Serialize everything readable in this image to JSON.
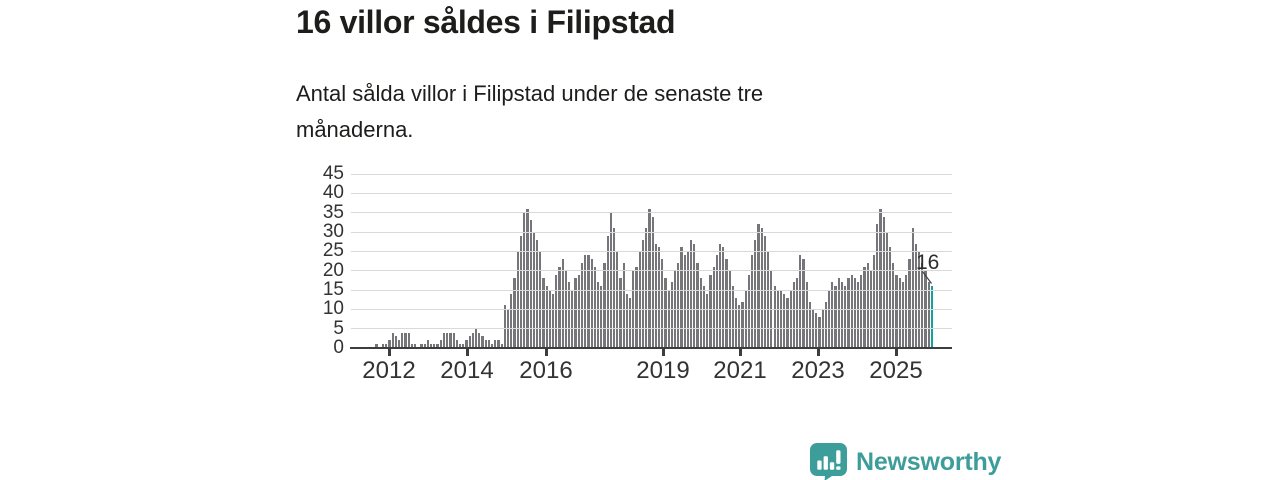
{
  "header": {
    "title": "16 villor såldes i Filipstad",
    "subtitle": "Antal sålda villor i Filipstad under de senaste tre månaderna."
  },
  "chart_data": {
    "type": "bar",
    "title": "16 villor såldes i Filipstad",
    "subtitle": "Antal sålda villor i Filipstad under de senaste tre månaderna.",
    "xlabel": "",
    "ylabel": "",
    "ylim": [
      0,
      45
    ],
    "yticks": [
      0,
      5,
      10,
      15,
      20,
      25,
      30,
      35,
      40,
      45
    ],
    "grid": "horizontal",
    "legend": "none",
    "x_unit": "month (rolling 3-month totals)",
    "x_range": "2011–2025",
    "xticks": [
      {
        "label": "2012",
        "dx": 38
      },
      {
        "label": "2014",
        "dx": 116
      },
      {
        "label": "2016",
        "dx": 195
      },
      {
        "label": "2019",
        "dx": 312
      },
      {
        "label": "2021",
        "dx": 389
      },
      {
        "label": "2023",
        "dx": 467
      },
      {
        "label": "2025",
        "dx": 545
      }
    ],
    "values": [
      0,
      0,
      0,
      0,
      0,
      0,
      0,
      1,
      0,
      1,
      1,
      2,
      4,
      3,
      2,
      4,
      4,
      4,
      1,
      1,
      0,
      1,
      1,
      2,
      1,
      1,
      1,
      2,
      4,
      4,
      4,
      4,
      2,
      1,
      1,
      2,
      3,
      4,
      5,
      4,
      3,
      2,
      2,
      1,
      2,
      2,
      1,
      11,
      10,
      14,
      18,
      25,
      29,
      35,
      36,
      33,
      30,
      28,
      25,
      18,
      16,
      15,
      14,
      19,
      21,
      23,
      20,
      17,
      15,
      18,
      19,
      22,
      24,
      24,
      23,
      21,
      17,
      16,
      22,
      29,
      35,
      31,
      25,
      18,
      22,
      14,
      13,
      20,
      21,
      25,
      28,
      31,
      36,
      34,
      27,
      26,
      23,
      18,
      15,
      17,
      20,
      22,
      26,
      24,
      25,
      28,
      27,
      22,
      18,
      16,
      14,
      19,
      21,
      24,
      27,
      26,
      23,
      20,
      16,
      13,
      11,
      12,
      15,
      19,
      24,
      28,
      32,
      31,
      29,
      25,
      20,
      16,
      15,
      15,
      14,
      13,
      15,
      17,
      18,
      24,
      23,
      17,
      12,
      10,
      9,
      8,
      10,
      12,
      15,
      17,
      16,
      18,
      17,
      16,
      18,
      19,
      18,
      17,
      19,
      21,
      22,
      20,
      24,
      32,
      36,
      34,
      30,
      26,
      22,
      19,
      18,
      17,
      19,
      23,
      31,
      27,
      25,
      22,
      20,
      17,
      16
    ],
    "bar_color": "#75757a",
    "highlight": {
      "position": "last-bar",
      "value": 16,
      "label": "16",
      "color": "#15a29c"
    }
  },
  "branding": {
    "name": "Newsworthy",
    "icon": "newsworthy-chart-bubble-icon",
    "color": "#3d9d9a"
  },
  "colors": {
    "background": "#ffffff",
    "title_text": "#1d1d1b",
    "axis_text": "#333333",
    "gridline": "#d9d9d9",
    "axis_line": "#3d3d3d",
    "bar_gray": "#75757a",
    "accent_teal": "#15a29c"
  }
}
